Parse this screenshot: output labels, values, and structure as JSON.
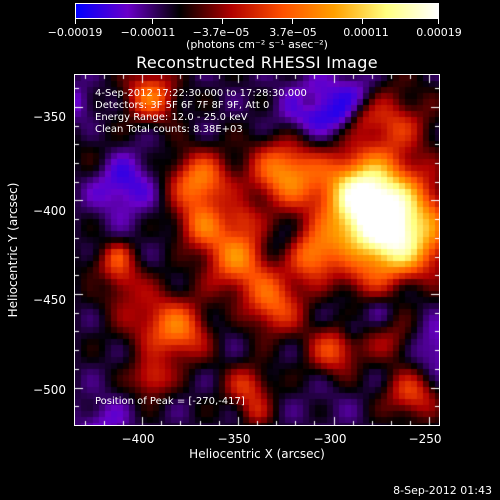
{
  "chart_data": {
    "type": "heatmap",
    "title": "Reconstructed RHESSI Image",
    "xlabel": "Heliocentric X (arcsec)",
    "ylabel": "Heliocentric Y (arcsec)",
    "xlim": [
      -435,
      -245
    ],
    "ylim": [
      -520,
      -333
    ],
    "x_ticks": [
      "−400",
      "−350",
      "−300",
      "−250"
    ],
    "x_tick_values": [
      -400,
      -350,
      -300,
      -250
    ],
    "y_ticks": [
      "−350",
      "−400",
      "−450",
      "−500"
    ],
    "y_tick_values": [
      -350,
      -400,
      -450,
      -500
    ],
    "colorbar": {
      "ticks": [
        "−0.00019",
        "−0.00011",
        "−3.7e−05",
        "3.7e−05",
        "0.00011",
        "0.00019"
      ],
      "tick_values": [
        -0.00019,
        -0.00011,
        -3.7e-05,
        3.7e-05,
        0.00011,
        0.00019
      ],
      "range": [
        -0.00019,
        0.00019
      ],
      "unit": "(photons cm⁻² s⁻¹ asec⁻²)",
      "colors": [
        "#0000ff",
        "#6a00c8",
        "#000000",
        "#b00000",
        "#ff5000",
        "#ffa000",
        "#ffff80",
        "#ffffff"
      ]
    },
    "annotations": {
      "time_range": "4-Sep-2012 17:22:30.000 to 17:28:30.000",
      "detectors": "Detectors: 3F 5F 6F 7F 8F 9F, Att 0",
      "energy_range": "Energy Range: 12.0 - 25.0 keV",
      "algorithm": "Clean     Total counts: 8.38E+03",
      "peak": "Position of Peak = [-270,-417]"
    },
    "peak_position": [
      -270,
      -417
    ]
  },
  "footer": {
    "date": "8-Sep-2012 01:43"
  }
}
